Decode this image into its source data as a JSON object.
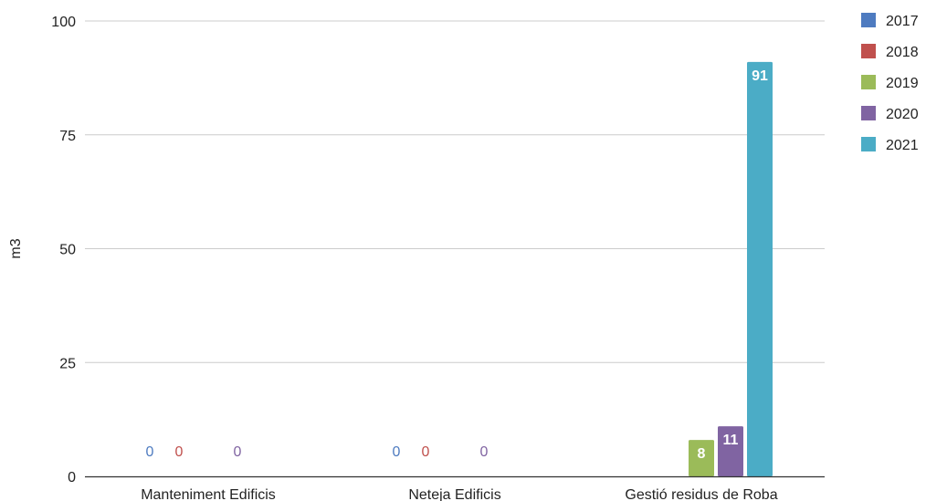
{
  "chart_data": {
    "type": "bar",
    "categories": [
      "Manteniment Edificis",
      "Neteja Edificis",
      "Gestió residus de Roba"
    ],
    "series": [
      {
        "name": "2017",
        "color": "#4e7bc0",
        "values": [
          0,
          0,
          null
        ],
        "labels": [
          "0",
          "0",
          ""
        ]
      },
      {
        "name": "2018",
        "color": "#c0504d",
        "values": [
          0,
          0,
          null
        ],
        "labels": [
          "0",
          "0",
          ""
        ]
      },
      {
        "name": "2019",
        "color": "#9bbb59",
        "values": [
          null,
          null,
          8
        ],
        "labels": [
          "",
          "",
          "8"
        ]
      },
      {
        "name": "2020",
        "color": "#8064a2",
        "values": [
          0,
          0,
          11
        ],
        "labels": [
          "0",
          "0",
          "11"
        ]
      },
      {
        "name": "2021",
        "color": "#4bacc6",
        "values": [
          null,
          null,
          91
        ],
        "labels": [
          "",
          "",
          "91"
        ]
      }
    ],
    "title": "",
    "xlabel": "",
    "ylabel": "m3",
    "ylim": [
      0,
      100
    ],
    "yticks": [
      0,
      25,
      50,
      75,
      100
    ],
    "grid": true,
    "legend_position": "right"
  }
}
